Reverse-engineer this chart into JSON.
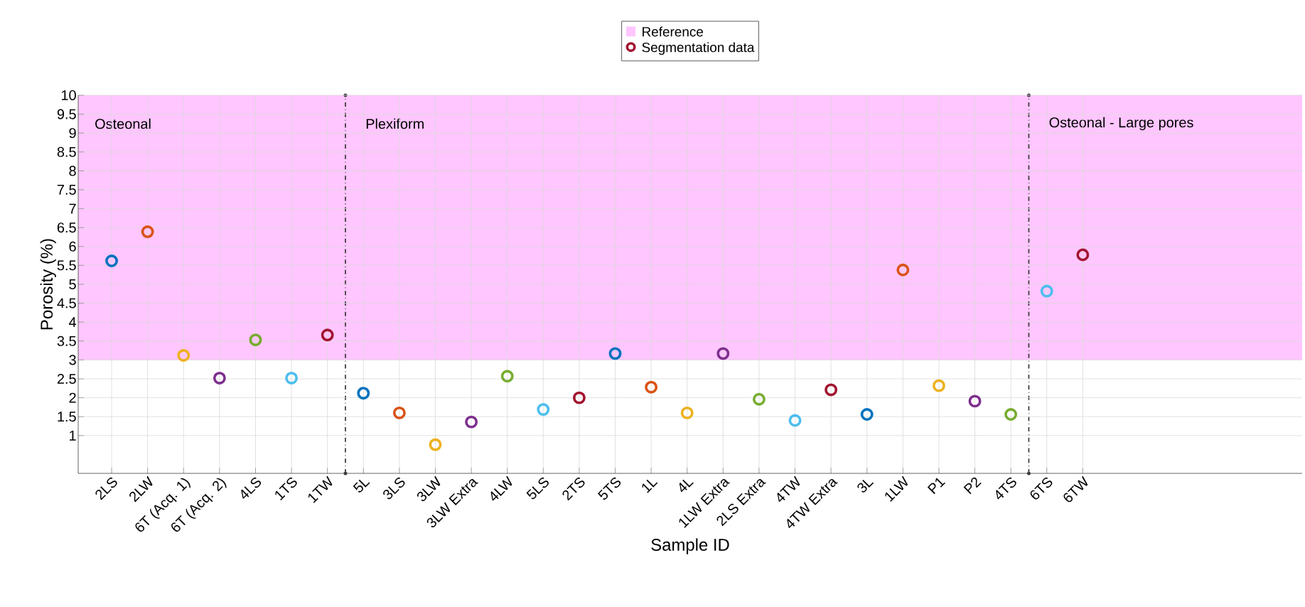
{
  "chart_data": {
    "type": "scatter",
    "xlabel": "Sample ID",
    "ylabel": "Porosity (%)",
    "categories": [
      "2LS",
      "2LW",
      "6T (Acq. 1)",
      "6T (Acq. 2)",
      "4LS",
      "1TS",
      "1TW",
      "5L",
      "3LS",
      "3LW",
      "3LW Extra",
      "4LW",
      "5LS",
      "2TS",
      "5TS",
      "1L",
      "4L",
      "1LW Extra",
      "2LS Extra",
      "4TW",
      "4TW Extra",
      "3L",
      "1LW",
      "P1",
      "P2",
      "4TS",
      "6TS",
      "6TW"
    ],
    "series": [
      {
        "name": "Segmentation data",
        "color": "#a2142f",
        "values": [
          5.62,
          6.39,
          3.12,
          2.52,
          3.53,
          2.52,
          3.66,
          2.12,
          1.6,
          0.76,
          1.36,
          2.57,
          1.69,
          2.0,
          3.17,
          2.28,
          1.6,
          3.17,
          1.96,
          1.4,
          2.21,
          1.56,
          5.38,
          2.32,
          1.91,
          1.56,
          4.82,
          5.78
        ],
        "colors": [
          "#0072bd",
          "#d95319",
          "#edb120",
          "#7e2f8e",
          "#77ac30",
          "#4dbeee",
          "#a2142f",
          "#0072bd",
          "#d95319",
          "#edb120",
          "#7e2f8e",
          "#77ac30",
          "#4dbeee",
          "#a2142f",
          "#0072bd",
          "#d95319",
          "#edb120",
          "#7e2f8e",
          "#77ac30",
          "#4dbeee",
          "#a2142f",
          "#0072bd",
          "#d95319",
          "#edb120",
          "#7e2f8e",
          "#77ac30",
          "#4dbeee",
          "#a2142f"
        ]
      }
    ],
    "ylim": [
      0,
      10
    ],
    "yticks": [
      1,
      1.5,
      2,
      2.5,
      3,
      3.5,
      4,
      4.5,
      5,
      5.5,
      6,
      6.5,
      7,
      7.5,
      8,
      8.5,
      9,
      9.5,
      10
    ],
    "bands": [
      {
        "axis": "y",
        "from": 3,
        "to": 10,
        "label": "Reference",
        "color": "#ffc6ff"
      }
    ],
    "annotations": [
      "Osteonal",
      "Plexiform",
      "Osteonal - Large pores"
    ],
    "grid": true,
    "legend": "top",
    "marker": "circle"
  }
}
